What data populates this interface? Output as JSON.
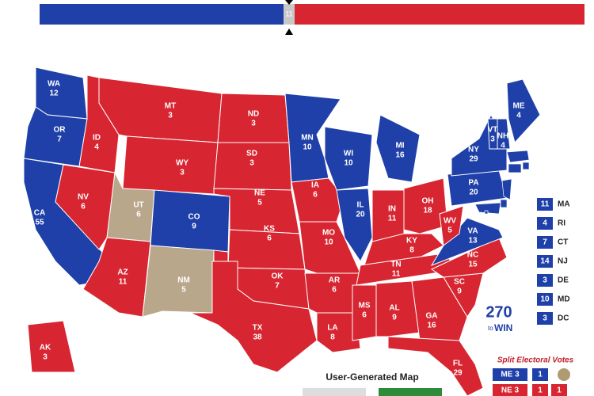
{
  "header": {
    "undecided_votes": "11"
  },
  "states": [
    {
      "abbr": "WA",
      "votes": 12,
      "color": "#1f40a8"
    },
    {
      "abbr": "OR",
      "votes": 7,
      "color": "#1f40a8"
    },
    {
      "abbr": "CA",
      "votes": 55,
      "color": "#1f40a8"
    },
    {
      "abbr": "NV",
      "votes": 6,
      "color": "#d72631"
    },
    {
      "abbr": "ID",
      "votes": 4,
      "color": "#d72631"
    },
    {
      "abbr": "MT",
      "votes": 3,
      "color": "#d72631"
    },
    {
      "abbr": "WY",
      "votes": 3,
      "color": "#d72631"
    },
    {
      "abbr": "UT",
      "votes": 6,
      "color": "#b9a78b"
    },
    {
      "abbr": "CO",
      "votes": 9,
      "color": "#1f40a8"
    },
    {
      "abbr": "AZ",
      "votes": 11,
      "color": "#d72631"
    },
    {
      "abbr": "NM",
      "votes": 5,
      "color": "#b9a78b"
    },
    {
      "abbr": "ND",
      "votes": 3,
      "color": "#d72631"
    },
    {
      "abbr": "SD",
      "votes": 3,
      "color": "#d72631"
    },
    {
      "abbr": "NE",
      "votes": 5,
      "color": "#d72631"
    },
    {
      "abbr": "KS",
      "votes": 6,
      "color": "#d72631"
    },
    {
      "abbr": "OK",
      "votes": 7,
      "color": "#d72631"
    },
    {
      "abbr": "TX",
      "votes": 38,
      "color": "#d72631"
    },
    {
      "abbr": "MN",
      "votes": 10,
      "color": "#1f40a8"
    },
    {
      "abbr": "IA",
      "votes": 6,
      "color": "#d72631"
    },
    {
      "abbr": "MO",
      "votes": 10,
      "color": "#d72631"
    },
    {
      "abbr": "AR",
      "votes": 6,
      "color": "#d72631"
    },
    {
      "abbr": "LA",
      "votes": 8,
      "color": "#d72631"
    },
    {
      "abbr": "WI",
      "votes": 10,
      "color": "#1f40a8"
    },
    {
      "abbr": "IL",
      "votes": 20,
      "color": "#1f40a8"
    },
    {
      "abbr": "MI",
      "votes": 16,
      "color": "#1f40a8"
    },
    {
      "abbr": "IN",
      "votes": 11,
      "color": "#d72631"
    },
    {
      "abbr": "OH",
      "votes": 18,
      "color": "#d72631"
    },
    {
      "abbr": "KY",
      "votes": 8,
      "color": "#d72631"
    },
    {
      "abbr": "TN",
      "votes": 11,
      "color": "#d72631"
    },
    {
      "abbr": "MS",
      "votes": 6,
      "color": "#d72631"
    },
    {
      "abbr": "AL",
      "votes": 9,
      "color": "#d72631"
    },
    {
      "abbr": "GA",
      "votes": 16,
      "color": "#d72631"
    },
    {
      "abbr": "FL",
      "votes": 29,
      "color": "#d72631"
    },
    {
      "abbr": "SC",
      "votes": 9,
      "color": "#d72631"
    },
    {
      "abbr": "NC",
      "votes": 15,
      "color": "#d72631"
    },
    {
      "abbr": "VA",
      "votes": 13,
      "color": "#1f40a8"
    },
    {
      "abbr": "WV",
      "votes": 5,
      "color": "#d72631"
    },
    {
      "abbr": "PA",
      "votes": 20,
      "color": "#1f40a8"
    },
    {
      "abbr": "NY",
      "votes": 29,
      "color": "#1f40a8"
    },
    {
      "abbr": "VT",
      "votes": 3,
      "color": "#1f40a8"
    },
    {
      "abbr": "NH",
      "votes": 4,
      "color": "#1f40a8"
    },
    {
      "abbr": "ME",
      "votes": 4,
      "color": "#1f40a8"
    },
    {
      "abbr": "AK",
      "votes": 3,
      "color": "#d72631"
    }
  ],
  "small_states": [
    {
      "abbr": "MA",
      "votes": 11,
      "color": "#1f40a8"
    },
    {
      "abbr": "RI",
      "votes": 4,
      "color": "#1f40a8"
    },
    {
      "abbr": "CT",
      "votes": 7,
      "color": "#1f40a8"
    },
    {
      "abbr": "NJ",
      "votes": 14,
      "color": "#1f40a8"
    },
    {
      "abbr": "DE",
      "votes": 3,
      "color": "#1f40a8"
    },
    {
      "abbr": "MD",
      "votes": 10,
      "color": "#1f40a8"
    },
    {
      "abbr": "DC",
      "votes": 3,
      "color": "#1f40a8"
    }
  ],
  "logo": {
    "number": "270",
    "to": "to",
    "win": "WIN"
  },
  "split": {
    "title": "Split Electoral Votes",
    "rows": [
      {
        "label": "ME 3",
        "color": "#1f40a8",
        "cells": [
          {
            "text": "1",
            "color": "#1f40a8"
          }
        ]
      },
      {
        "label": "NE 3",
        "color": "#d72631",
        "cells": [
          {
            "text": "1",
            "color": "#d72631"
          },
          {
            "text": "1",
            "color": "#d72631"
          }
        ]
      }
    ]
  },
  "footer": {
    "title": "User-Generated Map"
  }
}
